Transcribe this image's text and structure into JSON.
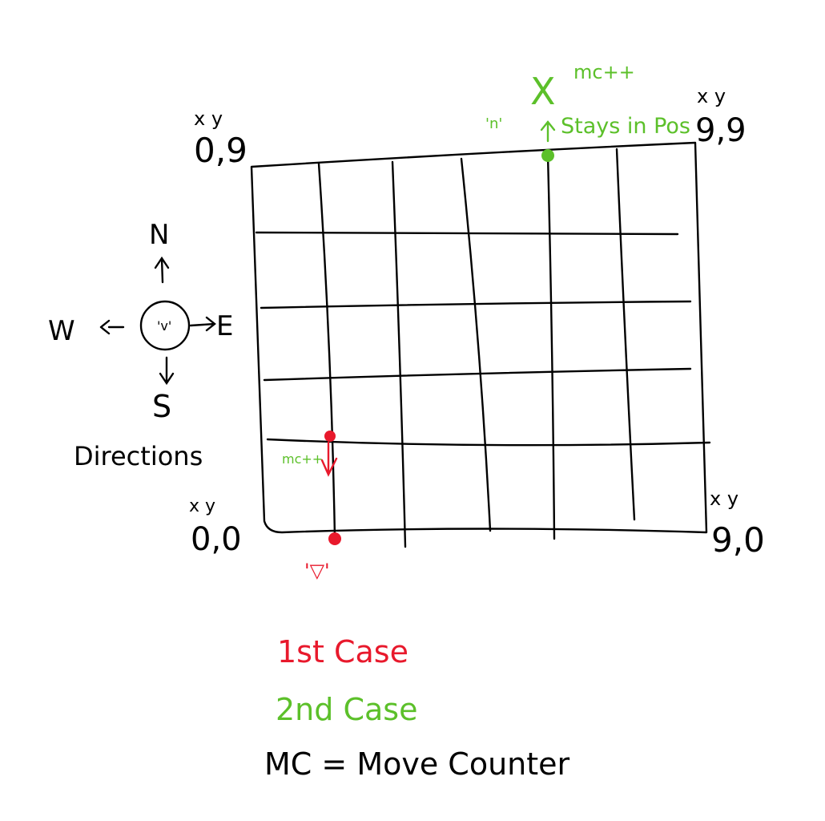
{
  "corners": {
    "top_left": {
      "axis": "x y",
      "coord": "0,9"
    },
    "top_right": {
      "axis": "x y",
      "coord": "9,9"
    },
    "bottom_left": {
      "axis": "x y",
      "coord": "0,0"
    },
    "bottom_right": {
      "axis": "x y",
      "coord": "9,0"
    }
  },
  "compass": {
    "north": "N",
    "south": "S",
    "east": "E",
    "west": "W",
    "face": "'v'",
    "caption": "Directions"
  },
  "case1": {
    "label": "mc++",
    "face": "'▽'",
    "color": "#e8192c"
  },
  "case2": {
    "face": "'n'",
    "mark": "X",
    "counter": "mc++",
    "note": "Stays in Pos",
    "color": "#5cc02a"
  },
  "legend": {
    "first_case": "1st Case",
    "second_case": "2nd Case",
    "definition": "MC = Move Counter"
  }
}
